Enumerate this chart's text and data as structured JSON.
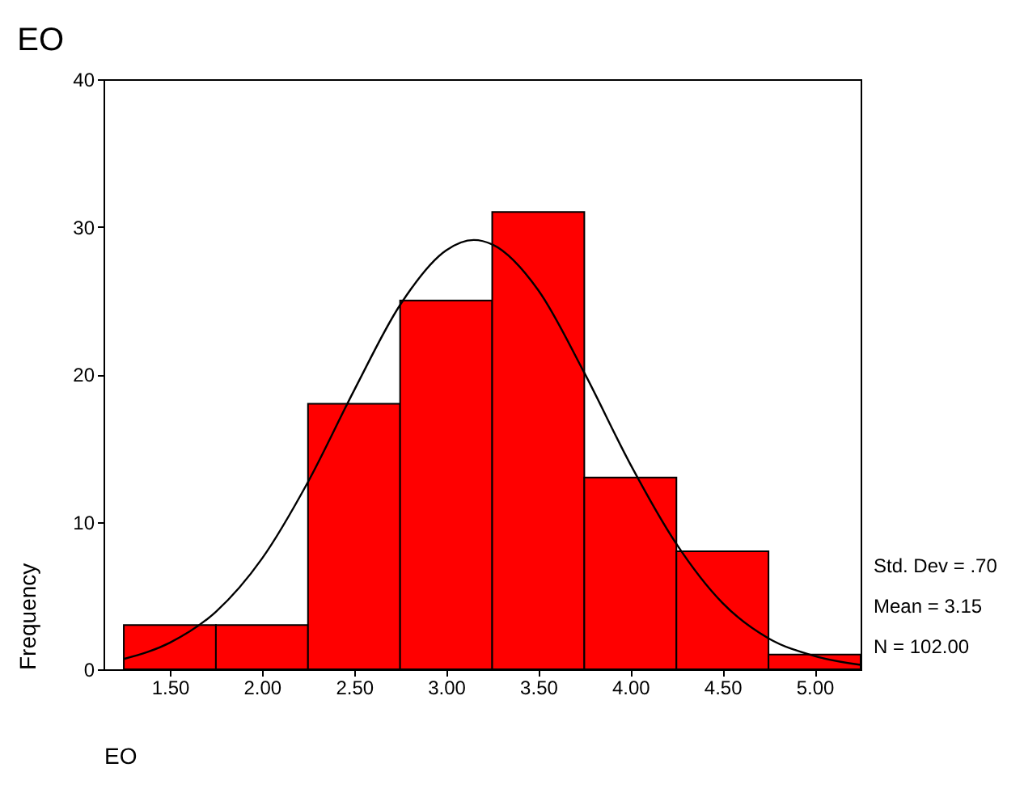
{
  "chart_data": {
    "type": "histogram",
    "title": "EO",
    "xlabel": "EO",
    "ylabel": "Frequency",
    "bins": [
      1.25,
      1.75,
      2.25,
      2.75,
      3.25,
      3.75,
      4.25,
      4.75,
      5.25
    ],
    "values": [
      3,
      3,
      18,
      25,
      31,
      13,
      8,
      1
    ],
    "color": "#ff0000",
    "series": [
      {
        "type": "line",
        "color": "#000000",
        "x": [
          1.25,
          1.5,
          1.75,
          2.0,
          2.25,
          2.5,
          2.75,
          3.0,
          3.15,
          3.25,
          3.5,
          3.75,
          4.0,
          4.25,
          4.5,
          4.75,
          5.0,
          5.25
        ],
        "values": [
          0.7,
          1.8,
          3.9,
          7.5,
          12.7,
          18.9,
          24.7,
          28.4,
          29.1,
          28.8,
          25.7,
          20.1,
          13.9,
          8.5,
          4.5,
          2.1,
          0.9,
          0.3
        ]
      }
    ],
    "xlim": [
      1.14,
      5.25
    ],
    "xticks": [
      {
        "value": 1.5,
        "label": "1.50"
      },
      {
        "value": 2.0,
        "label": "2.00"
      },
      {
        "value": 2.5,
        "label": "2.50"
      },
      {
        "value": 3.0,
        "label": "3.00"
      },
      {
        "value": 3.5,
        "label": "3.50"
      },
      {
        "value": 4.0,
        "label": "4.00"
      },
      {
        "value": 4.5,
        "label": "4.50"
      },
      {
        "value": 5.0,
        "label": "5.00"
      }
    ],
    "ylim": [
      0,
      40
    ],
    "yticks": [
      0,
      10,
      20,
      30,
      40
    ],
    "grid": false,
    "annotations": [
      "Std. Dev = .70",
      "Mean = 3.15",
      "N = 102.00"
    ]
  }
}
